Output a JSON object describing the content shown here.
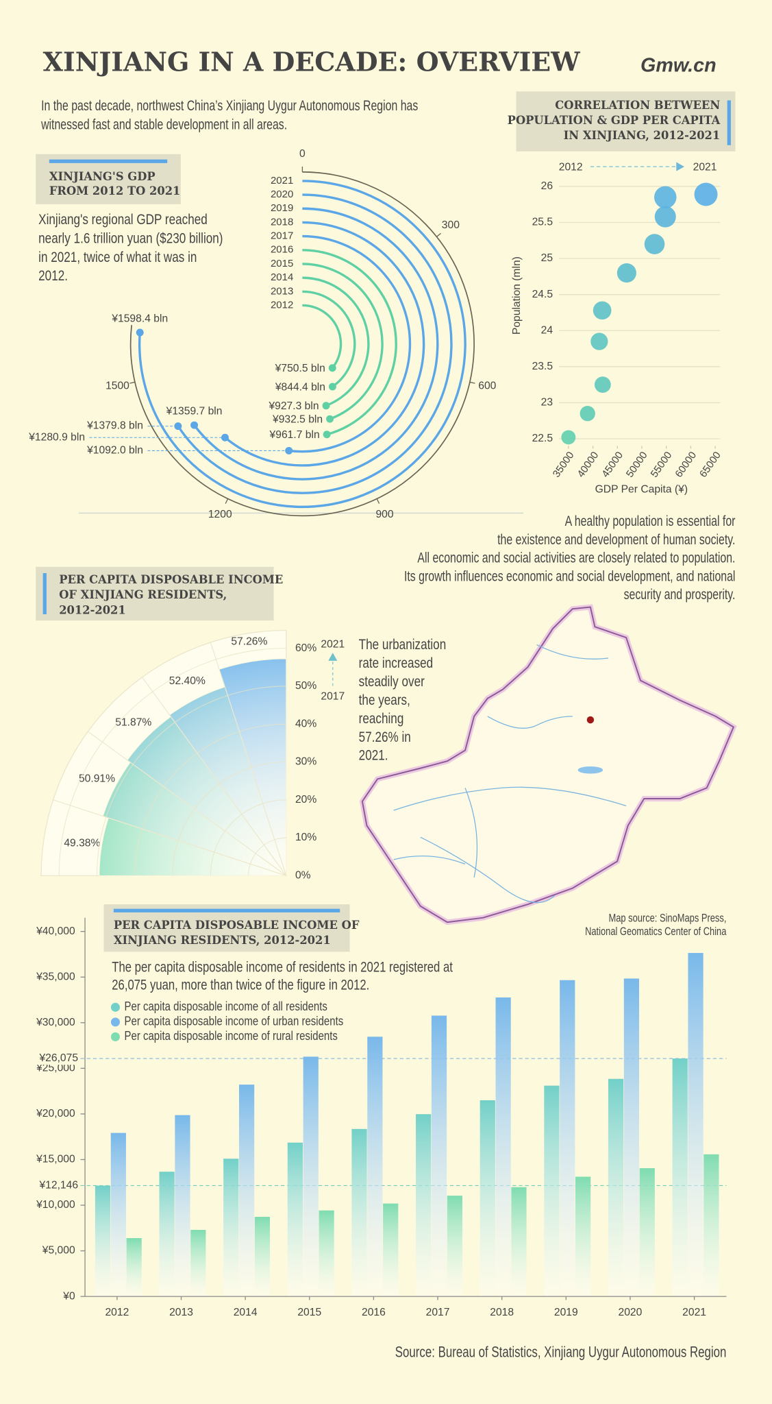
{
  "title": "XINJIANG IN A DECADE: OVERVIEW",
  "logo": "Gmw.cn",
  "intro": [
    "In the past decade, northwest China’s Xinjiang Uygur Autonomous Region has",
    "witnessed fast and stable development in all areas."
  ],
  "population_text": [
    "A healthy population is essential for",
    "the existence and development of human society.",
    "All economic and social activities are closely related to population.",
    "Its growth influences economic and social development, and national",
    "security and prosperity."
  ],
  "map_source": [
    "Map source: SinoMaps Press,",
    "National Geomatics Center of China"
  ],
  "source": "Source: Bureau of Statistics, Xinjiang Uygur Autonomous Region",
  "chart_data": [
    {
      "type": "radial-bar",
      "title": [
        "XINJIANG'S GDP",
        "FROM 2012 TO 2021"
      ],
      "text": [
        "Xinjiang's regional GDP reached",
        "nearly 1.6 trillion yuan ($230 billion)",
        "in 2021, twice of what it was in",
        "2012."
      ],
      "categories": [
        "2012",
        "2013",
        "2014",
        "2015",
        "2016",
        "2017",
        "2018",
        "2019",
        "2020",
        "2021"
      ],
      "values": [
        750.5,
        844.4,
        927.3,
        932.5,
        961.7,
        1092.0,
        1280.9,
        1359.7,
        1379.8,
        1598.4
      ],
      "value_labels": [
        "¥750.5 bln",
        "¥844.4 bln",
        "¥927.3 bln",
        "¥932.5 bln",
        "¥961.7 bln",
        "¥1092.0 bln",
        "¥1280.9 bln",
        "¥1359.7 bln",
        "¥1379.8 bln",
        "¥1598.4 bln"
      ],
      "colors": [
        "#5fd0a4",
        "#5fd0a4",
        "#5fd0a4",
        "#5fd0a4",
        "#5fd0a4",
        "#5aa6e6",
        "#5aa6e6",
        "#5aa6e6",
        "#5aa6e6",
        "#5aa6e6"
      ],
      "ylim": [
        0,
        2100
      ],
      "yticks": [
        0,
        300,
        600,
        900,
        1200,
        1500
      ]
    },
    {
      "type": "scatter",
      "title": [
        "CORRELATION BETWEEN",
        "POPULATION & GDP PER CAPITA",
        "IN XINJIANG, 2012-2021"
      ],
      "x_label": "GDP Per Capita (¥)",
      "y_label": "Population (mln)",
      "start_label": "2012",
      "end_label": "2021",
      "x": [
        35000,
        38900,
        42000,
        41300,
        41900,
        46900,
        52600,
        54800,
        54800,
        63100
      ],
      "values": [
        22.52,
        22.85,
        23.25,
        23.85,
        24.28,
        24.8,
        25.2,
        25.58,
        25.85,
        25.89
      ],
      "xlim": [
        34000,
        66000
      ],
      "xticks": [
        35000,
        40000,
        45000,
        50000,
        55000,
        60000,
        65000
      ],
      "ylim": [
        22.4,
        26.2
      ],
      "yticks": [
        22.5,
        23,
        23.5,
        24,
        24.5,
        25,
        25.5,
        26
      ],
      "color_start": "#5fcfae",
      "color_end": "#5aaee8",
      "grid": true
    },
    {
      "type": "polar-area",
      "title": [
        "PER CAPITA DISPOSABLE INCOME",
        "OF XINJIANG RESIDENTS,",
        "2012-2021"
      ],
      "text": [
        "The urbanization",
        "rate increased",
        "steadily over",
        "the years,",
        "reaching",
        "57.26% in",
        "2021."
      ],
      "start_label": "2017",
      "end_label": "2021",
      "values": [
        49.38,
        50.91,
        51.87,
        52.4,
        57.26
      ],
      "value_labels": [
        "49.38%",
        "50.91%",
        "51.87%",
        "52.40%",
        "57.26%"
      ],
      "ylim": [
        0,
        60
      ],
      "yticks": [
        {
          "value": 0,
          "label": "0%"
        },
        {
          "value": 10,
          "label": "10%"
        },
        {
          "value": 20,
          "label": "20%"
        },
        {
          "value": 30,
          "label": "30%"
        },
        {
          "value": 40,
          "label": "40%"
        },
        {
          "value": 50,
          "label": "50%"
        },
        {
          "value": 60,
          "label": "60%"
        }
      ],
      "color_start": "#7fdcb4",
      "color_end": "#7dbcec",
      "grid": true
    },
    {
      "type": "grouped-bar",
      "title": [
        "PER CAPITA DISPOSABLE INCOME OF",
        "XINJIANG RESIDENTS, 2012-2021"
      ],
      "subtitle": [
        "The per capita disposable income of residents in 2021 registered at",
        "26,075 yuan, more than twice of the figure in 2012."
      ],
      "categories": [
        "2012",
        "2013",
        "2014",
        "2015",
        "2016",
        "2017",
        "2018",
        "2019",
        "2020",
        "2021"
      ],
      "series": [
        {
          "name": "Per capita disposable income of all residents",
          "color": "#72d0c8",
          "values": [
            12146,
            13670,
            15096,
            16859,
            18355,
            19975,
            21500,
            23103,
            23845,
            26075
          ]
        },
        {
          "name": "Per capita disposable income of urban residents",
          "color": "#78b8ea",
          "values": [
            17920,
            19874,
            23214,
            26275,
            28463,
            30775,
            32764,
            34664,
            34838,
            37642
          ]
        },
        {
          "name": "Per capita disposable income of rural residents",
          "color": "#7fdcb0",
          "values": [
            6394,
            7297,
            8724,
            9425,
            10183,
            11045,
            11975,
            13122,
            14056,
            15575
          ]
        }
      ],
      "ylim": [
        0,
        41500
      ],
      "yticks": [
        {
          "value": 0,
          "label": "¥0"
        },
        {
          "value": 5000,
          "label": "¥5,000"
        },
        {
          "value": 10000,
          "label": "¥10,000"
        },
        {
          "value": 15000,
          "label": "¥15,000"
        },
        {
          "value": 20000,
          "label": "¥20,000"
        },
        {
          "value": 25000,
          "label": "¥25,000"
        },
        {
          "value": 30000,
          "label": "¥30,000"
        },
        {
          "value": 35000,
          "label": "¥35,000"
        },
        {
          "value": 40000,
          "label": "¥40,000"
        }
      ],
      "ref_lines": [
        {
          "value": 26075,
          "label": "¥26,075"
        },
        {
          "value": 12146,
          "label": "¥12,146"
        }
      ]
    }
  ]
}
